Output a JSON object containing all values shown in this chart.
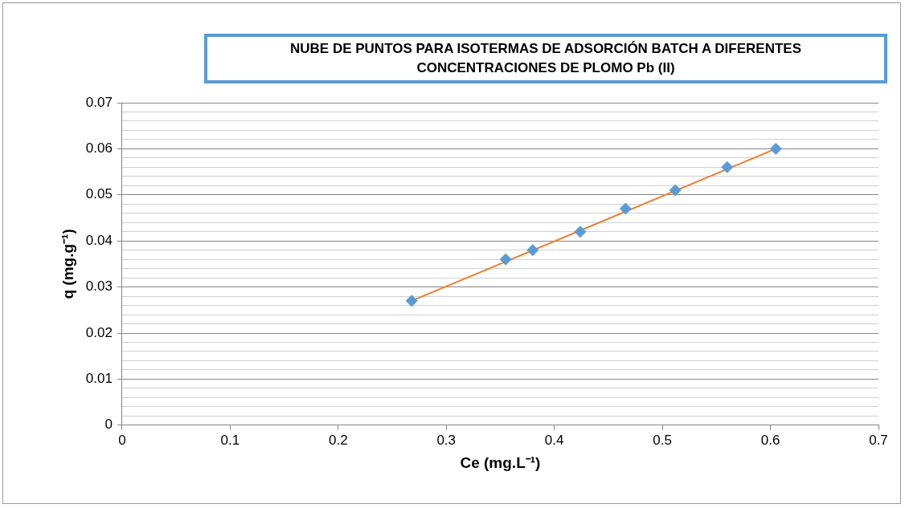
{
  "chart_data": {
    "type": "scatter",
    "title": "NUBE DE PUNTOS PARA ISOTERMAS DE ADSORCIÓN BATCH A DIFERENTES CONCENTRACIONES DE PLOMO Pb (II)",
    "xlabel": "Ce (mg.L⁻¹)",
    "ylabel": "q (mg.g⁻¹)",
    "series": [
      {
        "color": "#5b9bd5",
        "marker": "diamond",
        "x": [
          0.268,
          0.355,
          0.38,
          0.424,
          0.466,
          0.512,
          0.56,
          0.605
        ],
        "values": [
          0.027,
          0.036,
          0.038,
          0.042,
          0.047,
          0.051,
          0.056,
          0.06
        ]
      },
      {
        "type": "line",
        "marker": "none",
        "color": "#ed7d31",
        "x": [
          0.268,
          0.605
        ],
        "values": [
          0.027,
          0.06
        ]
      }
    ],
    "xlim": [
      0,
      0.7
    ],
    "xticks": [
      0,
      0.1,
      0.2,
      0.3,
      0.4,
      0.5,
      0.6,
      0.7
    ],
    "ylim": [
      0,
      0.07
    ],
    "yticks": [
      0,
      {
        "value": 0.002,
        "label": null
      },
      {
        "value": 0.004,
        "label": null
      },
      {
        "value": 0.006,
        "label": null
      },
      {
        "value": 0.008,
        "label": null
      },
      0.01,
      {
        "value": 0.012,
        "label": null
      },
      {
        "value": 0.014,
        "label": null
      },
      {
        "value": 0.016,
        "label": null
      },
      {
        "value": 0.018,
        "label": null
      },
      0.02,
      {
        "value": 0.022,
        "label": null
      },
      {
        "value": 0.024,
        "label": null
      },
      {
        "value": 0.026,
        "label": null
      },
      {
        "value": 0.028,
        "label": null
      },
      0.03,
      {
        "value": 0.032,
        "label": null
      },
      {
        "value": 0.034,
        "label": null
      },
      {
        "value": 0.036,
        "label": null
      },
      {
        "value": 0.038,
        "label": null
      },
      0.04,
      {
        "value": 0.042,
        "label": null
      },
      {
        "value": 0.044,
        "label": null
      },
      {
        "value": 0.046,
        "label": null
      },
      {
        "value": 0.048,
        "label": null
      },
      0.05,
      {
        "value": 0.052,
        "label": null
      },
      {
        "value": 0.054,
        "label": null
      },
      {
        "value": 0.056,
        "label": null
      },
      {
        "value": 0.058,
        "label": null
      },
      0.06,
      {
        "value": 0.062,
        "label": null
      },
      {
        "value": 0.064,
        "label": null
      },
      {
        "value": 0.066,
        "label": null
      },
      {
        "value": 0.068,
        "label": null
      },
      0.07
    ],
    "grid": "y",
    "legend": false
  }
}
